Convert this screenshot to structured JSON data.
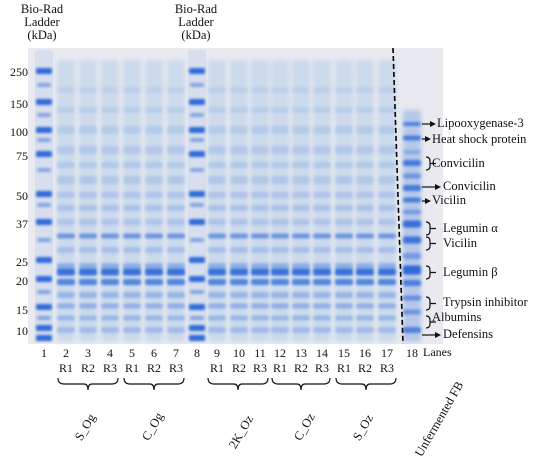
{
  "ladder_header": [
    "Bio-Rad",
    "Ladder",
    "(kDa)"
  ],
  "mw_markers": [
    "250",
    "150",
    "100",
    "75",
    "50",
    "37",
    "25",
    "20",
    "15",
    "10"
  ],
  "lanes": [
    "1",
    "2",
    "3",
    "4",
    "5",
    "6",
    "7",
    "8",
    "9",
    "10",
    "11",
    "12",
    "13",
    "14",
    "15",
    "16",
    "17",
    "18"
  ],
  "lanes_label": "Lanes",
  "replicates": [
    "R1",
    "R2",
    "R3",
    "R1",
    "R2",
    "R3",
    "R1",
    "R2",
    "R3",
    "R1",
    "R2",
    "R3",
    "R1",
    "R2",
    "R3"
  ],
  "groups": [
    "S_Og",
    "C_Og",
    "2K_Oz",
    "C_Oz",
    "S_Oz",
    "Unfermented FB"
  ],
  "proteins": [
    "Lipooxygenase-3",
    "Heat shock protein",
    "Convicilin",
    "Convicilin",
    "Vicilin",
    "Legumin α",
    "Vicilin",
    "Legumin β",
    "Trypsin inhibitor",
    "Albumins",
    "Defensins"
  ],
  "colors": {
    "gel_bg": "#e9ebf0",
    "band": "#1f5fd6",
    "ink": "#111111"
  }
}
